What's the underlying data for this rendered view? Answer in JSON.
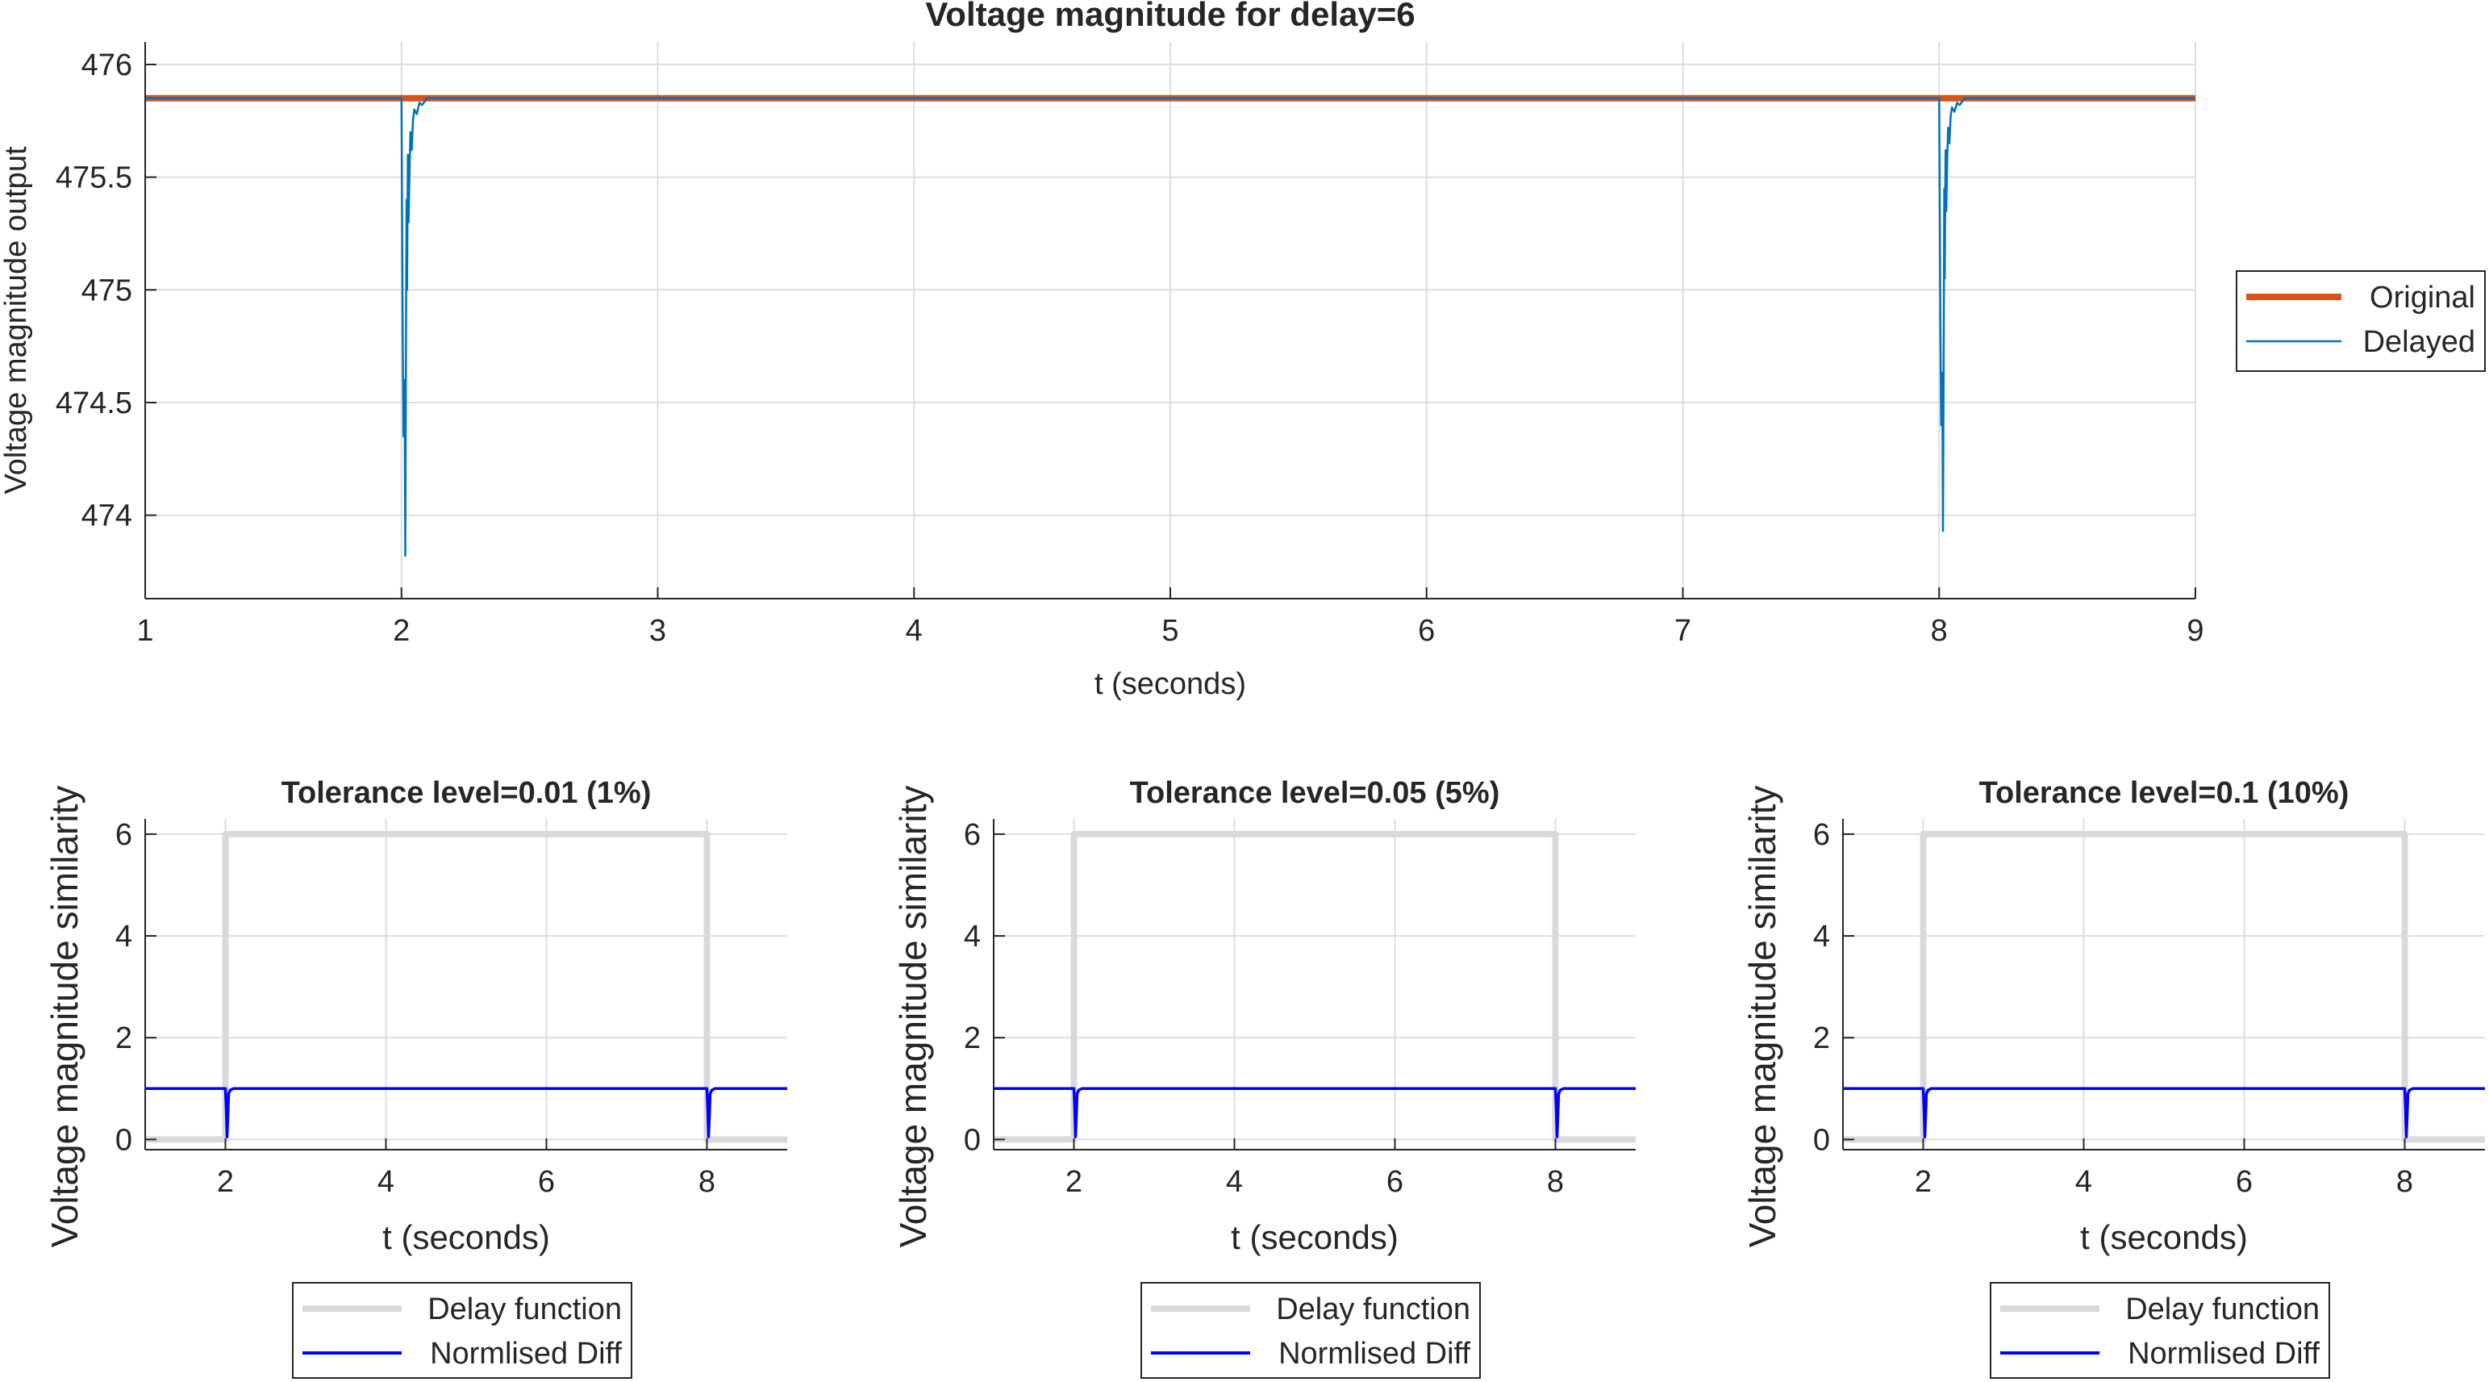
{
  "chart_data": [
    {
      "type": "line",
      "title": "Voltage magnitude for delay=6",
      "xlabel": "t (seconds)",
      "ylabel": "Voltage magnitude output",
      "xlim": [
        1,
        9
      ],
      "ylim": [
        473.63,
        476.1
      ],
      "xticks": [
        1,
        2,
        3,
        4,
        5,
        6,
        7,
        8,
        9
      ],
      "xtick_labels": [
        "1",
        "2",
        "3",
        "4",
        "5",
        "6",
        "7",
        "8",
        "9"
      ],
      "yticks": [
        474,
        474.5,
        475,
        475.5,
        476
      ],
      "ytick_labels": [
        "474",
        "474.5",
        "475",
        "475.5",
        "476"
      ],
      "grid": true,
      "legend_position": "outside-right",
      "series": [
        {
          "name": "Original",
          "color": "#D95319",
          "x": [
            1,
            9
          ],
          "y": [
            475.85,
            475.85
          ]
        },
        {
          "name": "Delayed",
          "color": "#0072BD",
          "x": [
            1,
            2.0,
            2.005,
            2.008,
            2.012,
            2.015,
            2.018,
            2.02,
            2.022,
            2.025,
            2.028,
            2.032,
            2.035,
            2.04,
            2.045,
            2.05,
            2.06,
            2.07,
            2.08,
            2.1,
            8.0,
            8.005,
            8.008,
            8.012,
            8.015,
            8.018,
            8.02,
            8.022,
            8.025,
            8.028,
            8.032,
            8.035,
            8.04,
            8.045,
            8.05,
            8.06,
            8.07,
            8.08,
            8.1,
            9
          ],
          "y": [
            475.85,
            475.85,
            474.8,
            474.35,
            474.6,
            473.82,
            474.9,
            475.4,
            475.0,
            475.6,
            475.3,
            475.55,
            475.7,
            475.62,
            475.75,
            475.8,
            475.78,
            475.83,
            475.82,
            475.85,
            475.85,
            474.85,
            474.4,
            474.63,
            473.93,
            474.8,
            475.45,
            475.05,
            475.62,
            475.35,
            475.6,
            475.72,
            475.65,
            475.77,
            475.81,
            475.79,
            475.83,
            475.82,
            475.85,
            475.85
          ]
        }
      ]
    },
    {
      "type": "line",
      "title": "Tolerance level=0.01 (1%)",
      "xlabel": "t (seconds)",
      "ylabel": "Voltage magnitude similarity",
      "xlim": [
        1,
        9
      ],
      "ylim": [
        -0.2,
        6.3
      ],
      "xticks": [
        2,
        4,
        6,
        8
      ],
      "xtick_labels": [
        "2",
        "4",
        "6",
        "8"
      ],
      "yticks": [
        0,
        2,
        4,
        6
      ],
      "ytick_labels": [
        "0",
        "2",
        "4",
        "6"
      ],
      "grid": true,
      "legend_position": "below",
      "series": [
        {
          "name": "Delay function",
          "color": "#D9D9D9",
          "x": [
            1,
            2,
            2,
            8,
            8,
            9
          ],
          "y": [
            0,
            0,
            6,
            6,
            0,
            0
          ]
        },
        {
          "name": "Normlised Diff",
          "color": "#0000FF",
          "x": [
            1,
            2.0,
            2.01,
            2.02,
            2.03,
            2.04,
            2.06,
            2.1,
            8.0,
            8.01,
            8.02,
            8.03,
            8.04,
            8.06,
            8.1,
            9
          ],
          "y": [
            1,
            1,
            0.6,
            0.05,
            0.45,
            0.9,
            0.97,
            1,
            1,
            0.6,
            0.05,
            0.45,
            0.9,
            0.97,
            1,
            1
          ]
        }
      ]
    },
    {
      "type": "line",
      "title": "Tolerance level=0.05 (5%)",
      "xlabel": "t (seconds)",
      "ylabel": "Voltage magnitude similarity",
      "xlim": [
        1,
        9
      ],
      "ylim": [
        -0.2,
        6.3
      ],
      "xticks": [
        2,
        4,
        6,
        8
      ],
      "xtick_labels": [
        "2",
        "4",
        "6",
        "8"
      ],
      "yticks": [
        0,
        2,
        4,
        6
      ],
      "ytick_labels": [
        "0",
        "2",
        "4",
        "6"
      ],
      "grid": true,
      "legend_position": "below",
      "series": [
        {
          "name": "Delay function",
          "color": "#D9D9D9",
          "x": [
            1,
            2,
            2,
            8,
            8,
            9
          ],
          "y": [
            0,
            0,
            6,
            6,
            0,
            0
          ]
        },
        {
          "name": "Normlised Diff",
          "color": "#0000FF",
          "x": [
            1,
            2.0,
            2.01,
            2.02,
            2.03,
            2.04,
            2.06,
            2.1,
            8.0,
            8.01,
            8.02,
            8.03,
            8.04,
            8.06,
            8.1,
            9
          ],
          "y": [
            1,
            1,
            0.6,
            0.05,
            0.45,
            0.9,
            0.97,
            1,
            1,
            0.6,
            0.05,
            0.45,
            0.9,
            0.97,
            1,
            1
          ]
        }
      ]
    },
    {
      "type": "line",
      "title": "Tolerance level=0.1 (10%)",
      "xlabel": "t (seconds)",
      "ylabel": "Voltage magnitude similarity",
      "xlim": [
        1,
        9
      ],
      "ylim": [
        -0.2,
        6.3
      ],
      "xticks": [
        2,
        4,
        6,
        8
      ],
      "xtick_labels": [
        "2",
        "4",
        "6",
        "8"
      ],
      "yticks": [
        0,
        2,
        4,
        6
      ],
      "ytick_labels": [
        "0",
        "2",
        "4",
        "6"
      ],
      "grid": true,
      "legend_position": "below",
      "series": [
        {
          "name": "Delay function",
          "color": "#D9D9D9",
          "x": [
            1,
            2,
            2,
            8,
            8,
            9
          ],
          "y": [
            0,
            0,
            6,
            6,
            0,
            0
          ]
        },
        {
          "name": "Normlised Diff",
          "color": "#0000FF",
          "x": [
            1,
            2.0,
            2.01,
            2.02,
            2.03,
            2.04,
            2.06,
            2.1,
            8.0,
            8.01,
            8.02,
            8.03,
            8.04,
            8.06,
            8.1,
            9
          ],
          "y": [
            1,
            1,
            0.6,
            0.05,
            0.45,
            0.9,
            0.97,
            1,
            1,
            0.6,
            0.05,
            0.45,
            0.9,
            0.97,
            1,
            1
          ]
        }
      ]
    }
  ]
}
